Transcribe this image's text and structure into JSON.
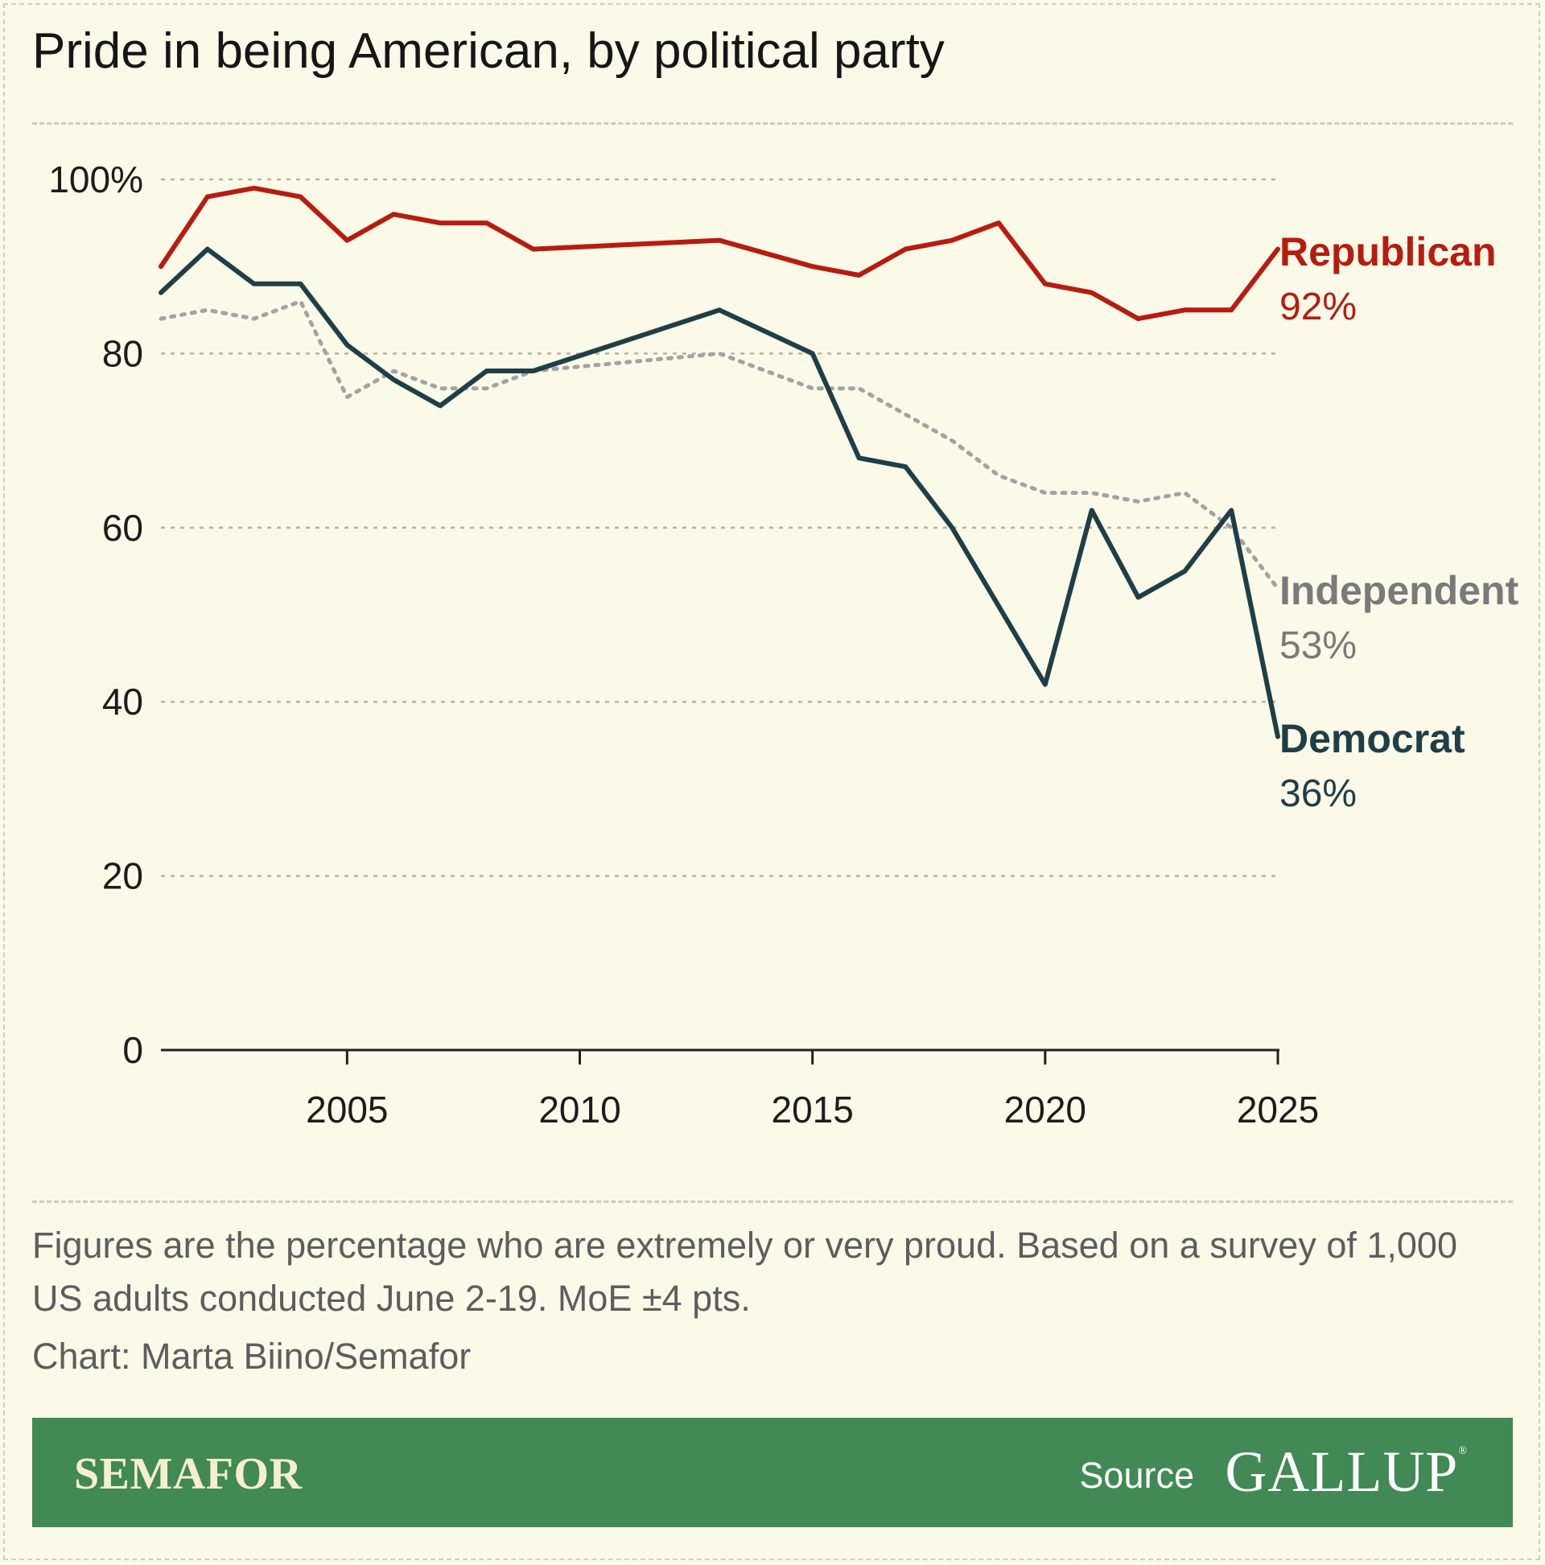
{
  "title": "Pride in being American, by political party",
  "note": "Figures are the percentage who are extremely or very proud. Based on a survey of 1,000 US adults conducted June 2-19. MoE ±4 pts.",
  "credit": "Chart: Marta Biino/Semafor",
  "footer": {
    "brand": "SEMAFOR",
    "source_label": "Source",
    "source_name": "GALLUP",
    "source_mark": "®"
  },
  "colors": {
    "background": "#fbf9e8",
    "republican": "#b71c10",
    "independent": "#a3a3a3",
    "independent_label": "#7a7a7a",
    "democrat": "#1f3f47",
    "footer": "#418955"
  },
  "chart_data": {
    "type": "line",
    "title": "Pride in being American, by political party",
    "xlim": [
      2001,
      2025
    ],
    "ylim": [
      0,
      100
    ],
    "x_ticks": [
      2005,
      2010,
      2015,
      2020,
      2025
    ],
    "y_ticks": [
      0,
      20,
      40,
      60,
      80,
      100
    ],
    "y_tick_labels": [
      "0",
      "20",
      "40",
      "60",
      "80",
      "100%"
    ],
    "grid": true,
    "legend": "direct labels at line ends",
    "series": [
      {
        "name": "Republican",
        "end_label": "92%",
        "style": "solid",
        "x": [
          2001,
          2002,
          2003,
          2004,
          2005,
          2006,
          2007,
          2008,
          2009,
          2013,
          2015,
          2016,
          2017,
          2018,
          2019,
          2020,
          2021,
          2022,
          2023,
          2024,
          2025
        ],
        "values": [
          90,
          98,
          99,
          98,
          93,
          96,
          95,
          95,
          92,
          93,
          90,
          89,
          92,
          93,
          95,
          88,
          87,
          84,
          85,
          85,
          92
        ]
      },
      {
        "name": "Independent",
        "end_label": "53%",
        "style": "dotted",
        "x": [
          2001,
          2002,
          2003,
          2004,
          2005,
          2006,
          2007,
          2008,
          2009,
          2010,
          2013,
          2015,
          2016,
          2017,
          2018,
          2019,
          2020,
          2021,
          2022,
          2023,
          2024,
          2025
        ],
        "values": [
          84,
          85,
          84,
          86,
          75,
          78,
          76,
          76,
          78,
          78.5,
          80,
          76,
          76,
          73,
          70,
          66,
          64,
          64,
          63,
          64,
          60,
          53
        ]
      },
      {
        "name": "Democrat",
        "end_label": "36%",
        "style": "solid",
        "x": [
          2001,
          2002,
          2003,
          2004,
          2005,
          2006,
          2007,
          2008,
          2009,
          2013,
          2015,
          2016,
          2017,
          2018,
          2020,
          2021,
          2022,
          2023,
          2024,
          2025
        ],
        "values": [
          87,
          92,
          88,
          88,
          81,
          77,
          74,
          78,
          78,
          85,
          80,
          68,
          67,
          60,
          42,
          62,
          52,
          55,
          62,
          36
        ]
      }
    ]
  }
}
